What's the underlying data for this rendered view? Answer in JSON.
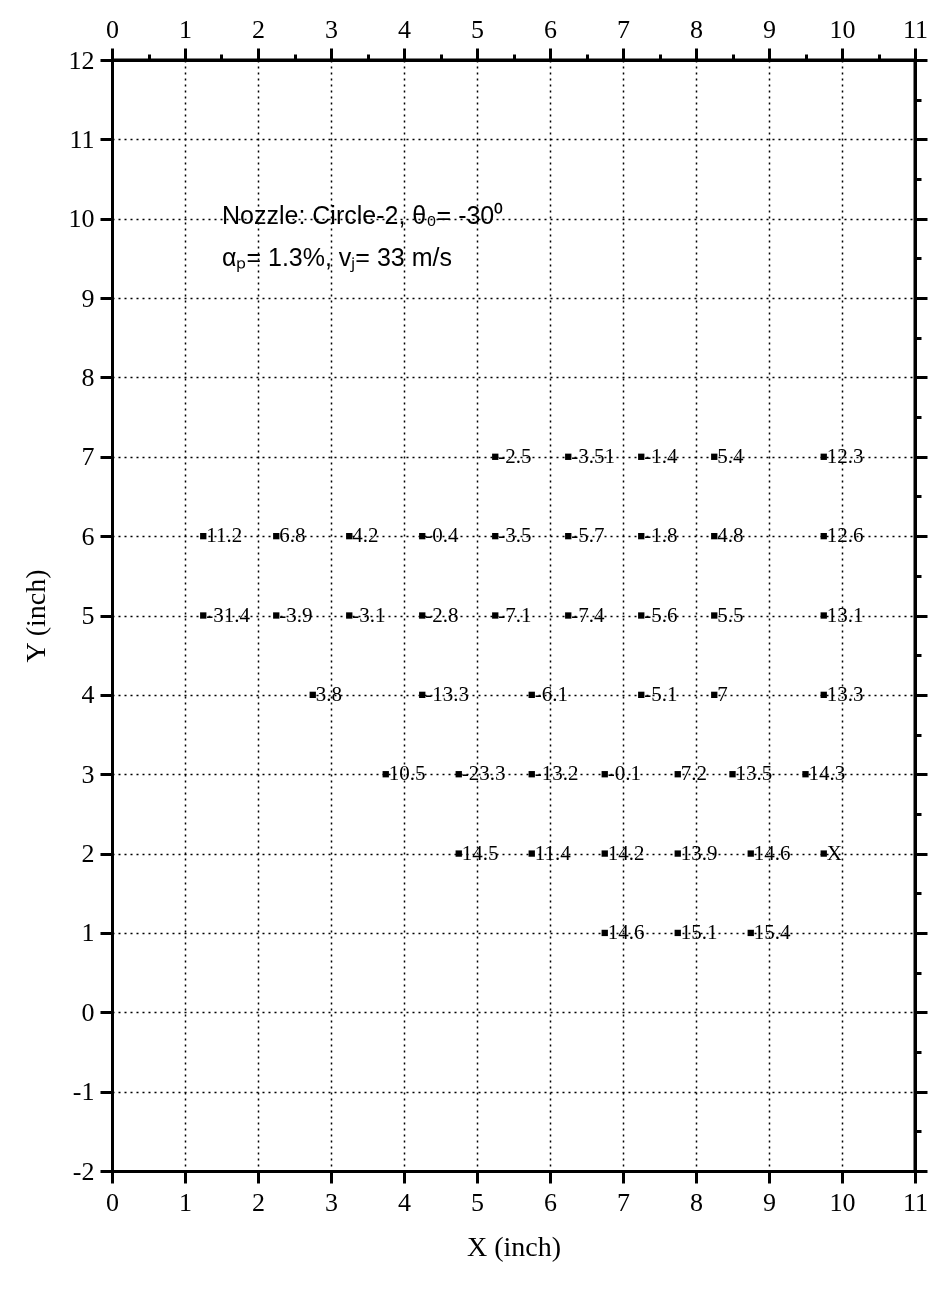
{
  "chart_data": {
    "type": "scatter",
    "series": [
      {
        "color": "#000000",
        "x": [
          5.25,
          6.25,
          7.25,
          8.25,
          9.75,
          1.25,
          2.25,
          3.25,
          4.25,
          5.25,
          6.25,
          7.25,
          8.25,
          9.75,
          1.25,
          2.25,
          3.25,
          4.25,
          5.25,
          6.25,
          7.25,
          8.25,
          9.75,
          2.75,
          4.25,
          5.75,
          7.25,
          8.25,
          9.75,
          3.75,
          4.75,
          5.75,
          6.75,
          7.75,
          8.5,
          9.5,
          4.75,
          5.75,
          6.75,
          7.75,
          8.75,
          9.75,
          6.75,
          7.75,
          8.75
        ],
        "values": [
          7,
          7,
          7,
          7,
          7,
          6,
          6,
          6,
          6,
          6,
          6,
          6,
          6,
          6,
          5,
          5,
          5,
          5,
          5,
          5,
          5,
          5,
          5,
          4,
          4,
          4,
          4,
          4,
          4,
          3,
          3,
          3,
          3,
          3,
          3,
          3,
          2,
          2,
          2,
          2,
          2,
          2,
          1,
          1,
          1
        ]
      }
    ],
    "marker": "square",
    "xlabel": "X (inch)",
    "ylabel": "Y (inch)",
    "xlim": [
      0,
      11
    ],
    "xticks": [
      0,
      {
        "value": 0.5,
        "label": null
      },
      1,
      {
        "value": 1.5,
        "label": null
      },
      2,
      {
        "value": 2.5,
        "label": null
      },
      3,
      {
        "value": 3.5,
        "label": null
      },
      4,
      {
        "value": 4.5,
        "label": null
      },
      5,
      {
        "value": 5.5,
        "label": null
      },
      6,
      {
        "value": 6.5,
        "label": null
      },
      7,
      {
        "value": 7.5,
        "label": null
      },
      8,
      {
        "value": 8.5,
        "label": null
      },
      9,
      {
        "value": 9.5,
        "label": null
      },
      10,
      {
        "value": 10.5,
        "label": null
      },
      11
    ],
    "x2lim": [
      0,
      11
    ],
    "x2ticks": [
      0,
      {
        "value": 0.5,
        "label": null
      },
      1,
      {
        "value": 1.5,
        "label": null
      },
      2,
      {
        "value": 2.5,
        "label": null
      },
      3,
      {
        "value": 3.5,
        "label": null
      },
      4,
      {
        "value": 4.5,
        "label": null
      },
      5,
      {
        "value": 5.5,
        "label": null
      },
      6,
      {
        "value": 6.5,
        "label": null
      },
      7,
      {
        "value": 7.5,
        "label": null
      },
      8,
      {
        "value": 8.5,
        "label": null
      },
      9,
      {
        "value": 9.5,
        "label": null
      },
      10,
      {
        "value": 10.5,
        "label": null
      },
      11
    ],
    "ylim": [
      -2,
      12
    ],
    "yticks": [
      -2,
      {
        "value": -1.5,
        "label": null
      },
      -1,
      {
        "value": -0.5,
        "label": null
      },
      0,
      {
        "value": 0.5,
        "label": null
      },
      1,
      {
        "value": 1.5,
        "label": null
      },
      2,
      {
        "value": 2.5,
        "label": null
      },
      3,
      {
        "value": 3.5,
        "label": null
      },
      4,
      {
        "value": 4.5,
        "label": null
      },
      5,
      {
        "value": 5.5,
        "label": null
      },
      6,
      {
        "value": 6.5,
        "label": null
      },
      7,
      {
        "value": 7.5,
        "label": null
      },
      8,
      {
        "value": 8.5,
        "label": null
      },
      9,
      {
        "value": 9.5,
        "label": null
      },
      10,
      {
        "value": 10.5,
        "label": null
      },
      11,
      {
        "value": 11.5,
        "label": null
      },
      12
    ],
    "grid": true,
    "annotations": [
      "Nozzle: Circle-2, θ₀= -30⁰",
      "αₚ= 1.3%, vⱼ= 33 m/s",
      {
        "text": "-2.5",
        "x": 5.25,
        "y": 7
      },
      {
        "text": "-3.51",
        "x": 6.25,
        "y": 7
      },
      {
        "text": "-1.4",
        "x": 7.25,
        "y": 7
      },
      {
        "text": "5.4",
        "x": 8.25,
        "y": 7
      },
      {
        "text": "12.3",
        "x": 9.75,
        "y": 7
      },
      {
        "text": "11.2",
        "x": 1.25,
        "y": 6
      },
      {
        "text": "6.8",
        "x": 2.25,
        "y": 6
      },
      {
        "text": "4.2",
        "x": 3.25,
        "y": 6
      },
      {
        "text": "-0.4",
        "x": 4.25,
        "y": 6
      },
      {
        "text": "-3.5",
        "x": 5.25,
        "y": 6
      },
      {
        "text": "-5.7",
        "x": 6.25,
        "y": 6
      },
      {
        "text": "-1.8",
        "x": 7.25,
        "y": 6
      },
      {
        "text": "4.8",
        "x": 8.25,
        "y": 6
      },
      {
        "text": "12.6",
        "x": 9.75,
        "y": 6
      },
      {
        "text": "-31.4",
        "x": 1.25,
        "y": 5
      },
      {
        "text": "-3.9",
        "x": 2.25,
        "y": 5
      },
      {
        "text": "-3.1",
        "x": 3.25,
        "y": 5
      },
      {
        "text": "-2.8",
        "x": 4.25,
        "y": 5
      },
      {
        "text": "-7.1",
        "x": 5.25,
        "y": 5
      },
      {
        "text": "-7.4",
        "x": 6.25,
        "y": 5
      },
      {
        "text": "-5.6",
        "x": 7.25,
        "y": 5
      },
      {
        "text": "5.5",
        "x": 8.25,
        "y": 5
      },
      {
        "text": "13.1",
        "x": 9.75,
        "y": 5
      },
      {
        "text": "3.8",
        "x": 2.75,
        "y": 4
      },
      {
        "text": "-13.3",
        "x": 4.25,
        "y": 4
      },
      {
        "text": "-6.1",
        "x": 5.75,
        "y": 4
      },
      {
        "text": "-5.1",
        "x": 7.25,
        "y": 4
      },
      {
        "text": "7",
        "x": 8.25,
        "y": 4
      },
      {
        "text": "13.3",
        "x": 9.75,
        "y": 4
      },
      {
        "text": "10.5",
        "x": 3.75,
        "y": 3
      },
      {
        "text": "-23.3",
        "x": 4.75,
        "y": 3
      },
      {
        "text": "-13.2",
        "x": 5.75,
        "y": 3
      },
      {
        "text": "-0.1",
        "x": 6.75,
        "y": 3
      },
      {
        "text": "7.2",
        "x": 7.75,
        "y": 3
      },
      {
        "text": "13.5",
        "x": 8.5,
        "y": 3
      },
      {
        "text": "14.3",
        "x": 9.5,
        "y": 3
      },
      {
        "text": "14.5",
        "x": 4.75,
        "y": 2
      },
      {
        "text": "11.4",
        "x": 5.75,
        "y": 2
      },
      {
        "text": "14.2",
        "x": 6.75,
        "y": 2
      },
      {
        "text": "13.9",
        "x": 7.75,
        "y": 2
      },
      {
        "text": "14.6",
        "x": 8.75,
        "y": 2
      },
      {
        "text": "X",
        "x": 9.75,
        "y": 2
      },
      {
        "text": "14.6",
        "x": 6.75,
        "y": 1
      },
      {
        "text": "15.1",
        "x": 7.75,
        "y": 1
      },
      {
        "text": "15.4",
        "x": 8.75,
        "y": 1
      }
    ]
  }
}
